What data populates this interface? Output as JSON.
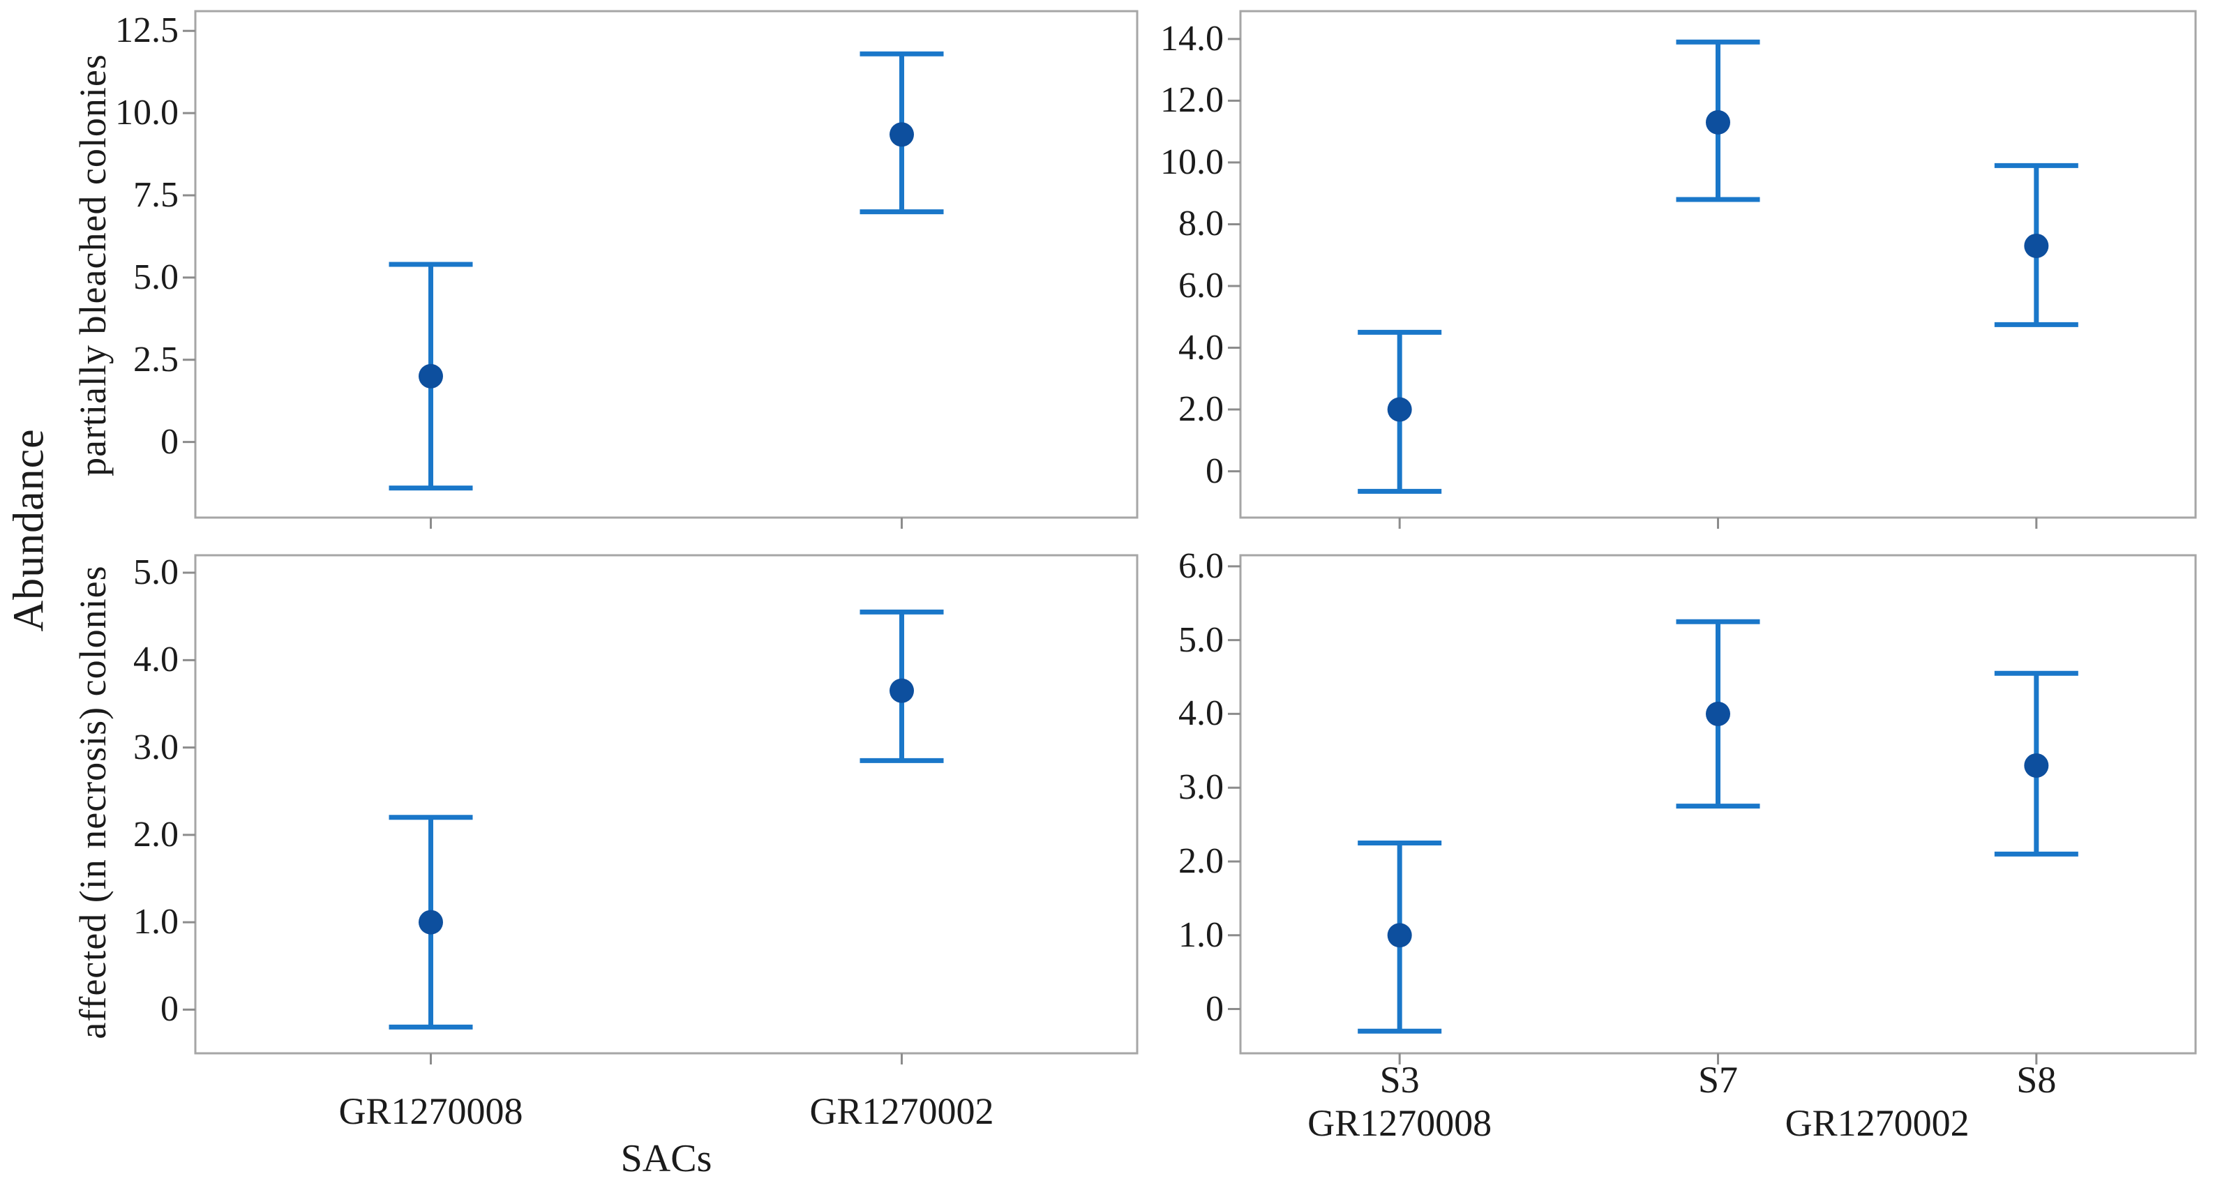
{
  "shared": {
    "y_axis_label": "Abundance",
    "x_axis_label": "SACs"
  },
  "colors": {
    "interval_line": "#1a77c9",
    "marker": "#0d4f9e",
    "panel_border": "#a6a6a6",
    "tick": "#8c8c8c",
    "text": "#1b1b1b",
    "background": "#ffffff"
  },
  "chart_data": [
    {
      "id": "partially-bleached-by-sac",
      "type": "interval",
      "position": "top-left",
      "ylabel": "partially bleached colonies",
      "categories": [
        "GR1270008",
        "GR1270002"
      ],
      "x_tick_labels_visible": false,
      "ylim": [
        -2.3,
        13.1
      ],
      "grid": false,
      "yticks": [
        {
          "v": 12.5,
          "label": "12.5"
        },
        {
          "v": 10.0,
          "label": "10.0"
        },
        {
          "v": 7.5,
          "label": "7.5"
        },
        {
          "v": 5.0,
          "label": "5.0"
        },
        {
          "v": 2.5,
          "label": "2.5"
        },
        {
          "v": 0,
          "label": "0"
        }
      ],
      "points": [
        {
          "category": "GR1270008",
          "mean": 2.0,
          "ci_low": -1.4,
          "ci_high": 5.4
        },
        {
          "category": "GR1270002",
          "mean": 9.35,
          "ci_low": 7.0,
          "ci_high": 11.8
        }
      ]
    },
    {
      "id": "partially-bleached-by-station",
      "type": "interval",
      "position": "top-right",
      "ylabel": "",
      "categories": [
        "S3",
        "S7",
        "S8"
      ],
      "x_tick_labels_visible": false,
      "ylim": [
        -1.5,
        14.9
      ],
      "grid": false,
      "yticks": [
        {
          "v": 14,
          "label": "14.0"
        },
        {
          "v": 12,
          "label": "12.0"
        },
        {
          "v": 10,
          "label": "10.0"
        },
        {
          "v": 8,
          "label": "8.0"
        },
        {
          "v": 6,
          "label": "6.0"
        },
        {
          "v": 4,
          "label": "4.0"
        },
        {
          "v": 2,
          "label": "2.0"
        },
        {
          "v": 0,
          "label": "0"
        }
      ],
      "points": [
        {
          "category": "S3",
          "mean": 2.0,
          "ci_low": -0.65,
          "ci_high": 4.5
        },
        {
          "category": "S7",
          "mean": 11.3,
          "ci_low": 8.8,
          "ci_high": 13.9
        },
        {
          "category": "S8",
          "mean": 7.3,
          "ci_low": 4.75,
          "ci_high": 9.9
        }
      ]
    },
    {
      "id": "necrosis-by-sac",
      "type": "interval",
      "position": "bottom-left",
      "ylabel": "affected (in necrosis) colonies",
      "categories": [
        "GR1270008",
        "GR1270002"
      ],
      "x_tick_labels_visible": true,
      "ylim": [
        -0.5,
        5.2
      ],
      "grid": false,
      "yticks": [
        {
          "v": 5,
          "label": "5.0"
        },
        {
          "v": 4,
          "label": "4.0"
        },
        {
          "v": 3,
          "label": "3.0"
        },
        {
          "v": 2,
          "label": "2.0"
        },
        {
          "v": 1,
          "label": "1.0"
        },
        {
          "v": 0,
          "label": "0"
        }
      ],
      "points": [
        {
          "category": "GR1270008",
          "mean": 1.0,
          "ci_low": -0.2,
          "ci_high": 2.2
        },
        {
          "category": "GR1270002",
          "mean": 3.65,
          "ci_low": 2.85,
          "ci_high": 4.55
        }
      ]
    },
    {
      "id": "necrosis-by-station",
      "type": "interval",
      "position": "bottom-right",
      "ylabel": "",
      "categories": [
        "S3",
        "S7",
        "S8"
      ],
      "x_tick_labels_visible": true,
      "ylim": [
        -0.6,
        6.15
      ],
      "grid": false,
      "yticks": [
        {
          "v": 6,
          "label": "6.0"
        },
        {
          "v": 5,
          "label": "5.0"
        },
        {
          "v": 4,
          "label": "4.0"
        },
        {
          "v": 3,
          "label": "3.0"
        },
        {
          "v": 2,
          "label": "2.0"
        },
        {
          "v": 1,
          "label": "1.0"
        },
        {
          "v": 0,
          "label": "0"
        }
      ],
      "points": [
        {
          "category": "S3",
          "mean": 1.0,
          "ci_low": -0.3,
          "ci_high": 2.25
        },
        {
          "category": "S7",
          "mean": 4.0,
          "ci_low": 2.75,
          "ci_high": 5.25
        },
        {
          "category": "S8",
          "mean": 3.3,
          "ci_low": 2.1,
          "ci_high": 4.55
        }
      ],
      "group_labels": [
        {
          "label": "GR1270008",
          "categories": [
            "S3"
          ]
        },
        {
          "label": "GR1270002",
          "categories": [
            "S7",
            "S8"
          ]
        }
      ]
    }
  ]
}
